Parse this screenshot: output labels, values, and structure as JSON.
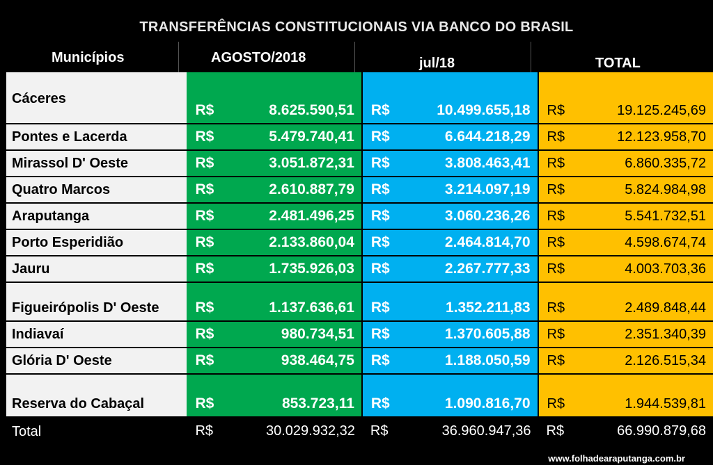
{
  "title": "TRANSFERÊNCIAS  CONSTITUCIONAIS VIA BANCO DO BRASIL",
  "headers": {
    "municipios": "Municípios",
    "agosto": "AGOSTO/2018",
    "jul": "jul/18",
    "total": "TOTAL"
  },
  "currency": "R$",
  "rows": [
    {
      "name": "Cáceres",
      "agosto": "8.625.590,51",
      "jul": "10.499.655,18",
      "total": "19.125.245,69"
    },
    {
      "name": "Pontes e Lacerda",
      "agosto": "5.479.740,41",
      "jul": "6.644.218,29",
      "total": "12.123.958,70"
    },
    {
      "name": "Mirassol D' Oeste",
      "agosto": "3.051.872,31",
      "jul": "3.808.463,41",
      "total": "6.860.335,72"
    },
    {
      "name": "Quatro Marcos",
      "agosto": "2.610.887,79",
      "jul": "3.214.097,19",
      "total": "5.824.984,98"
    },
    {
      "name": "Araputanga",
      "agosto": "2.481.496,25",
      "jul": "3.060.236,26",
      "total": "5.541.732,51"
    },
    {
      "name": "Porto Esperidião",
      "agosto": "2.133.860,04",
      "jul": "2.464.814,70",
      "total": "4.598.674,74"
    },
    {
      "name": "Jauru",
      "agosto": "1.735.926,03",
      "jul": "2.267.777,33",
      "total": "4.003.703,36"
    },
    {
      "name": "Figueirópolis D' Oeste",
      "agosto": "1.137.636,61",
      "jul": "1.352.211,83",
      "total": "2.489.848,44"
    },
    {
      "name": "Indiavaí",
      "agosto": "980.734,51",
      "jul": "1.370.605,88",
      "total": "2.351.340,39"
    },
    {
      "name": "Glória D' Oeste",
      "agosto": "938.464,75",
      "jul": "1.188.050,59",
      "total": "2.126.515,34"
    },
    {
      "name": "Reserva do Cabaçal",
      "agosto": "853.723,11",
      "jul": "1.090.816,70",
      "total": "1.944.539,81"
    }
  ],
  "totals": {
    "label": "Total",
    "agosto": "30.029.932,32",
    "jul": "36.960.947,36",
    "total": "66.990.879,68"
  },
  "watermark": "www.folhadearaputanga.com.br",
  "colors": {
    "agosto": "#00a84f",
    "jul": "#00b0f0",
    "total": "#ffc000",
    "names": "#f2f2f2"
  }
}
